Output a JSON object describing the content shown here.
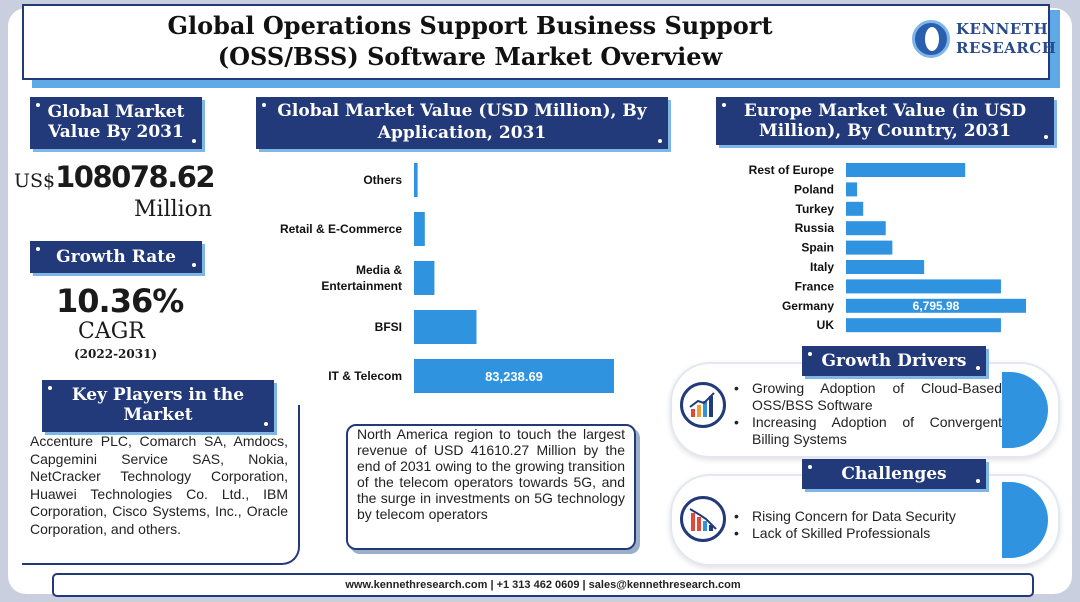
{
  "header": {
    "title_line1": "Global Operations Support Business Support",
    "title_line2": "(OSS/BSS) Software Market Overview",
    "logo_line1": "KENNETH",
    "logo_line2": "RESEARCH"
  },
  "market_value": {
    "heading": "Global Market Value By 2031",
    "prefix": "US$",
    "value": "108078.62",
    "unit": "Million"
  },
  "growth": {
    "heading": "Growth Rate",
    "value": "10.36%",
    "label": "CAGR",
    "period": "(2022-2031)"
  },
  "key_players": {
    "heading": "Key Players in the Market",
    "text": "Accenture PLC, Comarch SA, Amdocs, Capgemini Service SAS, Nokia, NetCracker Technology Corporation, Huawei Technologies Co. Ltd., IBM Corporation, Cisco Systems, Inc., Oracle Corporation, and others."
  },
  "north_america": {
    "text": "North America region to touch the largest revenue of USD 41610.27 Million by the end of 2031 owing to the growing transition of the telecom operators towards 5G, and the surge in investments on 5G technology by telecom operators"
  },
  "growth_drivers": {
    "heading": "Growth Drivers",
    "items": [
      "Growing Adoption of Cloud-Based OSS/BSS Software",
      "Increasing Adoption of Convergent Billing Systems"
    ]
  },
  "challenges": {
    "heading": "Challenges",
    "items": [
      "Rising Concern for Data Security",
      "Lack of Skilled Professionals"
    ]
  },
  "footer": {
    "text": "www.kennethresearch.com | +1 313 462 0609 | sales@kennethresearch.com"
  },
  "colors": {
    "bar": "#2f93df",
    "navy": "#233a7a"
  },
  "chart_data": [
    {
      "type": "bar",
      "orientation": "horizontal",
      "title": "Global Market Value (USD Million), By Application, 2031",
      "categories": [
        "Others",
        "Retail & E-Commerce",
        "Media & Entertainment",
        "BFSI",
        "IT & Telecom"
      ],
      "category_lines": [
        [
          "Others"
        ],
        [
          "Retail & E-Commerce"
        ],
        [
          "Media &",
          "Entertainment"
        ],
        [
          "BFSI"
        ],
        [
          "IT & Telecom"
        ]
      ],
      "values": [
        1500,
        4500,
        8500,
        26000,
        83238.69
      ],
      "data_labels": [
        "",
        "",
        "",
        "",
        "83,238.69"
      ],
      "xlim": [
        0,
        83238.69
      ]
    },
    {
      "type": "bar",
      "orientation": "horizontal",
      "title": "Europe Market Value (in USD Million), By Country, 2031",
      "categories": [
        "Rest of Europe",
        "Poland",
        "Turkey",
        "Russia",
        "Spain",
        "Italy",
        "France",
        "Germany",
        "UK"
      ],
      "values": [
        4500,
        420,
        650,
        1500,
        1750,
        2950,
        5850,
        6795.98,
        5850
      ],
      "data_labels": [
        "",
        "",
        "",
        "",
        "",
        "",
        "",
        "6,795.98",
        ""
      ],
      "xlim": [
        0,
        6795.98
      ]
    }
  ]
}
